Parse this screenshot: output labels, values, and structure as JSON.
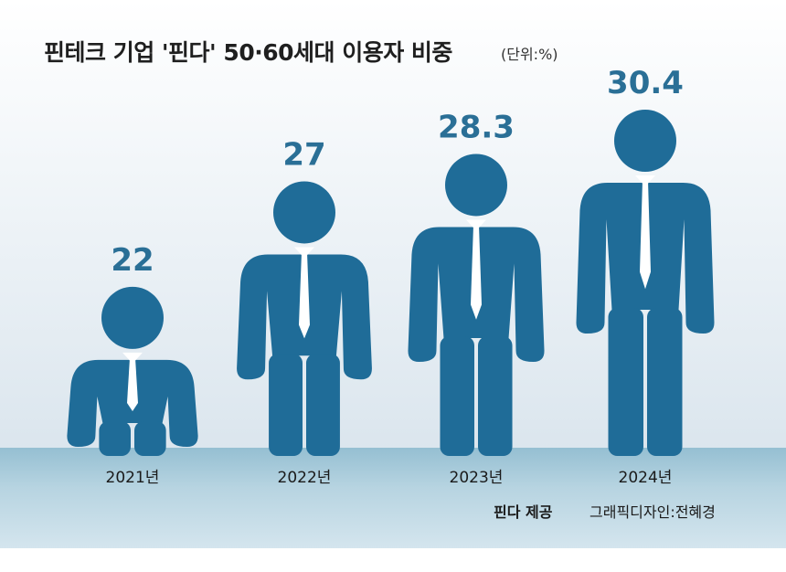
{
  "title": "핀테크 기업 '핀다' 50·60세대 이용자 비중",
  "unit": "(단위:%)",
  "source": "핀다 제공",
  "designer": "그래픽디자인:전혜경",
  "colors": {
    "figure": "#1f6c98",
    "value_text": "#2a6f96",
    "floor": "#a6c9d9"
  },
  "chart_data": {
    "type": "bar",
    "categories": [
      "2021년",
      "2022년",
      "2023년",
      "2024년"
    ],
    "values": [
      22,
      27,
      28.3,
      30.4
    ],
    "value_labels": [
      "22",
      "27",
      "28.3",
      "30.4"
    ],
    "title": "핀테크 기업 '핀다' 50·60세대 이용자 비중",
    "xlabel": "",
    "ylabel": "",
    "unit": "%",
    "grid": false,
    "legend": "none"
  }
}
